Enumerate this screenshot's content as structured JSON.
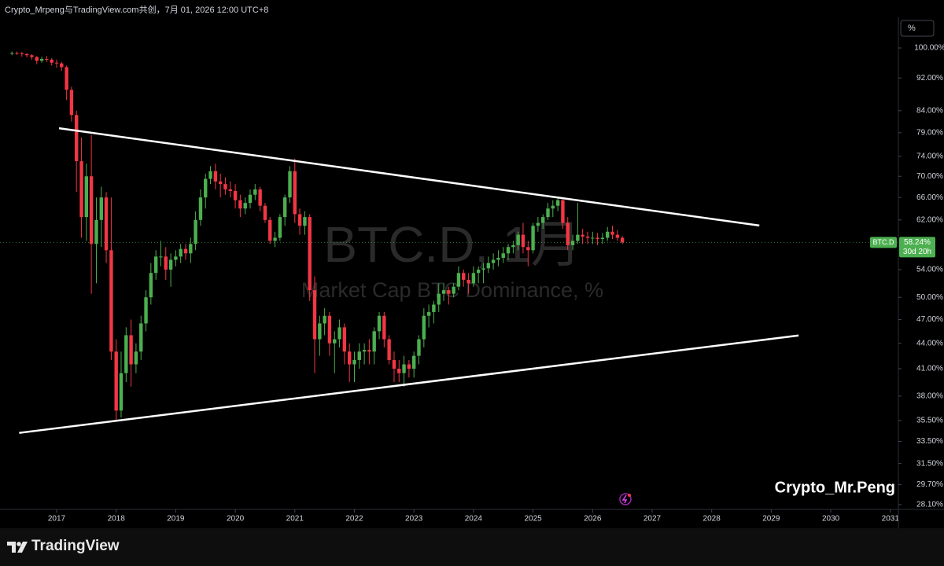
{
  "header": "Crypto_Mrpeng与TradingView.com共创，7月 01, 2026 12:00 UTC+8",
  "scale_button": "%",
  "brand": "TradingView",
  "chart_data": {
    "type": "candlestick",
    "symbol": "BTC.D",
    "watermark_title": "BTC.D, 1月",
    "watermark_subtitle": "Market Cap BTC Dominance, %",
    "signature": "Crypto_Mr.Peng",
    "up_color": "#4caf50",
    "down_color": "#f23645",
    "log_scale": true,
    "xlim": [
      2016.049,
      2031.135
    ],
    "xticks": [
      2017,
      2018,
      2019,
      2020,
      2021,
      2022,
      2023,
      2024,
      2025,
      2026,
      2027,
      2028,
      2029,
      2030,
      2031
    ],
    "ylim": [
      27.73,
      108.9
    ],
    "yticks": [
      {
        "value": 100,
        "label": "100.00%"
      },
      {
        "value": 92,
        "label": "92.00%"
      },
      {
        "value": 84,
        "label": "84.00%"
      },
      {
        "value": 79,
        "label": "79.00%"
      },
      {
        "value": 74,
        "label": "74.00%"
      },
      {
        "value": 70,
        "label": "70.00%"
      },
      {
        "value": 66,
        "label": "66.00%"
      },
      {
        "value": 62,
        "label": "62.00%"
      },
      {
        "value": 54,
        "label": "54.00%"
      },
      {
        "value": 50,
        "label": "50.00%"
      },
      {
        "value": 47,
        "label": "47.00%"
      },
      {
        "value": 44,
        "label": "44.00%"
      },
      {
        "value": 41,
        "label": "41.00%"
      },
      {
        "value": 38,
        "label": "38.00%"
      },
      {
        "value": 35.5,
        "label": "35.50%"
      },
      {
        "value": 33.5,
        "label": "33.50%"
      },
      {
        "value": 31.5,
        "label": "31.50%"
      },
      {
        "value": 29.7,
        "label": "29.70%"
      },
      {
        "value": 28.1,
        "label": "28.10%"
      }
    ],
    "last_price": {
      "value": 58.24,
      "label": "58.24%"
    },
    "countdown": "30d 20h",
    "lines": [
      {
        "color": "#ffffff",
        "x": [
          2017.04,
          2028.8
        ],
        "values": [
          80.0,
          61.05
        ]
      },
      {
        "color": "#ffffff",
        "x": [
          2016.37,
          2029.46
        ],
        "values": [
          34.3,
          44.97
        ]
      }
    ],
    "x": [
      2016.25,
      2016.333,
      2016.417,
      2016.5,
      2016.583,
      2016.667,
      2016.75,
      2016.833,
      2016.917,
      2017,
      2017.083,
      2017.167,
      2017.25,
      2017.333,
      2017.417,
      2017.5,
      2017.583,
      2017.667,
      2017.75,
      2017.833,
      2017.917,
      2018,
      2018.083,
      2018.167,
      2018.25,
      2018.333,
      2018.417,
      2018.5,
      2018.583,
      2018.667,
      2018.75,
      2018.833,
      2018.917,
      2019,
      2019.083,
      2019.167,
      2019.25,
      2019.333,
      2019.417,
      2019.5,
      2019.583,
      2019.667,
      2019.75,
      2019.833,
      2019.917,
      2020,
      2020.083,
      2020.167,
      2020.25,
      2020.333,
      2020.417,
      2020.5,
      2020.583,
      2020.667,
      2020.75,
      2020.833,
      2020.917,
      2021,
      2021.083,
      2021.167,
      2021.25,
      2021.333,
      2021.417,
      2021.5,
      2021.583,
      2021.667,
      2021.75,
      2021.833,
      2021.917,
      2022,
      2022.083,
      2022.167,
      2022.25,
      2022.333,
      2022.417,
      2022.5,
      2022.583,
      2022.667,
      2022.75,
      2022.833,
      2022.917,
      2023,
      2023.083,
      2023.167,
      2023.25,
      2023.333,
      2023.417,
      2023.5,
      2023.583,
      2023.667,
      2023.75,
      2023.833,
      2023.917,
      2024,
      2024.083,
      2024.167,
      2024.25,
      2024.333,
      2024.417,
      2024.5,
      2024.583,
      2024.667,
      2024.75,
      2024.833,
      2024.917,
      2025,
      2025.083,
      2025.167,
      2025.25,
      2025.333,
      2025.417,
      2025.5,
      2025.583,
      2025.667,
      2025.75,
      2025.833,
      2025.917,
      2026,
      2026.083,
      2026.167,
      2026.25,
      2026.333,
      2026.417,
      2026.5
    ],
    "candles": [
      [
        98.4,
        99.0,
        98.0,
        98.6
      ],
      [
        98.6,
        99.0,
        98.1,
        98.5
      ],
      [
        98.5,
        98.9,
        97.6,
        98.3
      ],
      [
        98.3,
        98.6,
        97.4,
        98.0
      ],
      [
        98.0,
        98.3,
        96.8,
        97.5
      ],
      [
        97.5,
        97.8,
        95.6,
        96.5
      ],
      [
        96.5,
        97.6,
        96.0,
        97.0
      ],
      [
        97.0,
        97.8,
        96.2,
        96.8
      ],
      [
        96.8,
        97.2,
        95.2,
        96.0
      ],
      [
        96.0,
        96.8,
        94.6,
        95.8
      ],
      [
        95.8,
        96.2,
        93.8,
        94.8
      ],
      [
        94.8,
        95.2,
        86.5,
        89.0
      ],
      [
        89.0,
        89.8,
        81.5,
        83.0
      ],
      [
        83.0,
        84.0,
        67.0,
        73.0
      ],
      [
        73.0,
        78.0,
        59.0,
        62.5
      ],
      [
        62.5,
        72.5,
        58.5,
        70.0
      ],
      [
        70.0,
        78.5,
        50.5,
        58.0
      ],
      [
        58.0,
        66.0,
        52.0,
        62.0
      ],
      [
        62.0,
        68.0,
        57.5,
        66.0
      ],
      [
        66.0,
        67.0,
        55.0,
        57.0
      ],
      [
        57.0,
        66.0,
        42.0,
        43.0
      ],
      [
        43.0,
        44.5,
        35.5,
        36.5
      ],
      [
        36.5,
        43.0,
        35.8,
        40.5
      ],
      [
        40.5,
        46.0,
        39.5,
        45.0
      ],
      [
        45.0,
        47.0,
        39.0,
        41.5
      ],
      [
        41.5,
        44.0,
        40.5,
        43.0
      ],
      [
        43.0,
        47.5,
        42.0,
        46.5
      ],
      [
        46.5,
        51.0,
        45.5,
        50.0
      ],
      [
        50.0,
        55.0,
        49.0,
        53.5
      ],
      [
        53.5,
        57.0,
        52.5,
        56.0
      ],
      [
        56.0,
        58.5,
        54.5,
        56.0
      ],
      [
        56.0,
        57.5,
        52.5,
        54.0
      ],
      [
        54.0,
        56.5,
        51.5,
        55.5
      ],
      [
        55.5,
        57.0,
        54.5,
        56.0
      ],
      [
        56.0,
        58.0,
        55.0,
        57.2
      ],
      [
        57.2,
        58.0,
        55.5,
        56.5
      ],
      [
        56.5,
        59.0,
        55.0,
        58.0
      ],
      [
        58.0,
        63.5,
        57.0,
        62.0
      ],
      [
        62.0,
        67.5,
        61.0,
        66.0
      ],
      [
        66.0,
        70.5,
        64.0,
        69.5
      ],
      [
        69.5,
        72.0,
        68.5,
        71.0
      ],
      [
        71.0,
        72.5,
        67.5,
        69.0
      ],
      [
        69.0,
        70.5,
        66.0,
        68.5
      ],
      [
        68.5,
        69.8,
        66.5,
        67.5
      ],
      [
        67.5,
        69.0,
        66.0,
        67.2
      ],
      [
        67.2,
        68.5,
        64.0,
        65.5
      ],
      [
        65.5,
        66.5,
        62.5,
        64.0
      ],
      [
        64.0,
        66.0,
        63.0,
        65.0
      ],
      [
        65.0,
        67.5,
        64.0,
        66.5
      ],
      [
        66.5,
        68.5,
        65.5,
        67.5
      ],
      [
        67.5,
        68.0,
        63.5,
        64.5
      ],
      [
        64.5,
        65.0,
        61.5,
        62.0
      ],
      [
        62.0,
        62.5,
        58.0,
        58.5
      ],
      [
        58.5,
        60.0,
        57.5,
        59.0
      ],
      [
        59.0,
        63.0,
        58.5,
        62.5
      ],
      [
        62.5,
        66.5,
        61.0,
        66.0
      ],
      [
        66.0,
        72.0,
        65.0,
        71.0
      ],
      [
        71.0,
        73.5,
        61.5,
        63.0
      ],
      [
        63.0,
        64.0,
        59.5,
        61.0
      ],
      [
        61.0,
        63.5,
        59.5,
        62.5
      ],
      [
        62.5,
        63.0,
        49.5,
        51.0
      ],
      [
        51.0,
        53.0,
        40.5,
        44.5
      ],
      [
        44.5,
        47.5,
        42.5,
        46.5
      ],
      [
        46.5,
        48.5,
        45.0,
        47.5
      ],
      [
        47.5,
        48.0,
        42.5,
        44.0
      ],
      [
        44.0,
        45.5,
        40.5,
        44.5
      ],
      [
        44.5,
        47.0,
        43.5,
        46.0
      ],
      [
        46.0,
        46.5,
        41.5,
        43.0
      ],
      [
        43.0,
        44.0,
        39.5,
        41.5
      ],
      [
        41.5,
        43.0,
        39.5,
        42.0
      ],
      [
        42.0,
        44.0,
        41.0,
        43.0
      ],
      [
        43.0,
        44.0,
        41.5,
        43.2
      ],
      [
        43.2,
        44.5,
        41.5,
        43.0
      ],
      [
        43.0,
        46.0,
        41.5,
        45.5
      ],
      [
        45.5,
        48.0,
        44.5,
        47.5
      ],
      [
        47.5,
        48.0,
        43.5,
        44.5
      ],
      [
        44.5,
        45.0,
        41.5,
        42.0
      ],
      [
        42.0,
        43.0,
        39.5,
        41.0
      ],
      [
        41.0,
        42.0,
        39.5,
        40.5
      ],
      [
        40.5,
        42.5,
        39.0,
        41.5
      ],
      [
        41.5,
        42.0,
        40.0,
        41.0
      ],
      [
        41.0,
        43.0,
        40.0,
        42.5
      ],
      [
        42.5,
        45.0,
        41.5,
        44.5
      ],
      [
        44.5,
        48.5,
        43.5,
        47.5
      ],
      [
        47.5,
        49.0,
        46.0,
        48.0
      ],
      [
        48.0,
        49.5,
        46.5,
        49.0
      ],
      [
        49.0,
        52.0,
        48.0,
        50.5
      ],
      [
        50.5,
        52.0,
        49.5,
        51.0
      ],
      [
        51.0,
        51.5,
        49.0,
        50.5
      ],
      [
        50.5,
        52.0,
        50.0,
        51.5
      ],
      [
        51.5,
        54.5,
        51.0,
        53.5
      ],
      [
        53.5,
        54.0,
        51.5,
        52.5
      ],
      [
        52.5,
        53.5,
        50.5,
        52.0
      ],
      [
        52.0,
        54.5,
        51.5,
        53.5
      ],
      [
        53.5,
        54.5,
        52.0,
        54.0
      ],
      [
        54.0,
        55.0,
        52.0,
        54.2
      ],
      [
        54.2,
        56.0,
        53.5,
        55.0
      ],
      [
        55.0,
        56.5,
        54.0,
        55.5
      ],
      [
        55.5,
        57.0,
        54.5,
        55.8
      ],
      [
        55.8,
        57.5,
        55.0,
        56.5
      ],
      [
        56.5,
        58.0,
        55.5,
        57.5
      ],
      [
        57.5,
        58.5,
        56.5,
        57.8
      ],
      [
        57.8,
        60.0,
        57.0,
        59.5
      ],
      [
        59.5,
        61.5,
        56.5,
        57.5
      ],
      [
        57.5,
        58.5,
        54.5,
        57.0
      ],
      [
        57.0,
        61.5,
        56.5,
        61.0
      ],
      [
        61.0,
        62.5,
        60.0,
        61.5
      ],
      [
        61.5,
        63.0,
        60.5,
        62.5
      ],
      [
        62.5,
        65.0,
        62.0,
        64.0
      ],
      [
        64.0,
        65.5,
        62.5,
        64.5
      ],
      [
        64.5,
        66.0,
        63.5,
        65.5
      ],
      [
        65.5,
        66.0,
        60.5,
        61.5
      ],
      [
        61.5,
        62.5,
        57.0,
        57.8
      ],
      [
        57.8,
        59.5,
        57.0,
        58.5
      ],
      [
        58.5,
        65.0,
        58.0,
        59.5
      ],
      [
        59.5,
        60.5,
        58.0,
        59.2
      ],
      [
        59.2,
        60.0,
        58.0,
        59.0
      ],
      [
        59.0,
        60.0,
        58.0,
        59.0
      ],
      [
        59.0,
        59.8,
        57.8,
        58.8
      ],
      [
        58.8,
        59.8,
        58.0,
        59.0
      ],
      [
        59.0,
        60.8,
        58.5,
        60.0
      ],
      [
        60.0,
        61.0,
        58.8,
        59.5
      ],
      [
        59.5,
        60.3,
        58.5,
        59.0
      ],
      [
        59.0,
        59.3,
        58.0,
        58.24
      ]
    ]
  }
}
